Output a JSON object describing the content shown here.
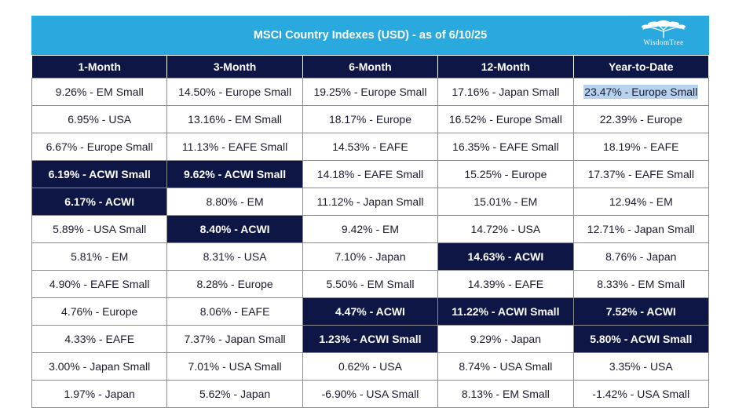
{
  "title": "MSCI Country Indexes (USD) - as of 6/10/25",
  "logo": {
    "icon": "tree-icon",
    "text": "WisdomTree"
  },
  "colors": {
    "title_bar": "#2aa9df",
    "header": "#0e1645",
    "highlight": "#0e1645",
    "selection": "#b7d2ee"
  },
  "columns": [
    "1-Month",
    "3-Month",
    "6-Month",
    "12-Month",
    "Year-to-Date"
  ],
  "rows": [
    [
      "9.26% - EM Small",
      "14.50% - Europe Small",
      "19.25% - Europe Small",
      "17.16% - Japan Small",
      "23.47% - Europe Small"
    ],
    [
      "6.95% - USA",
      "13.16% - EM Small",
      "18.17% - Europe",
      "16.52% - Europe Small",
      "22.39% - Europe"
    ],
    [
      "6.67% - Europe Small",
      "11.13% - EAFE Small",
      "14.53% - EAFE",
      "16.35% - EAFE Small",
      "18.19% - EAFE"
    ],
    [
      "6.19% - ACWI Small",
      "9.62% - ACWI Small",
      "14.18% - EAFE Small",
      "15.25% - Europe",
      "17.37% - EAFE Small"
    ],
    [
      "6.17% - ACWI",
      "8.80% - EM",
      "11.12% - Japan Small",
      "15.01% - EM",
      "12.94% - EM"
    ],
    [
      "5.89% - USA Small",
      "8.40% - ACWI",
      "9.42% - EM",
      "14.72% - USA",
      "12.71% - Japan Small"
    ],
    [
      "5.81% - EM",
      "8.31% - USA",
      "7.10% - Japan",
      "14.63% - ACWI",
      "8.76% - Japan"
    ],
    [
      "4.90% - EAFE Small",
      "8.28% - Europe",
      "5.50% - EM Small",
      "14.39% - EAFE",
      "8.33% - EM Small"
    ],
    [
      "4.76% - Europe",
      "8.06% - EAFE",
      "4.47% - ACWI",
      "11.22% - ACWI Small",
      "7.52% - ACWI"
    ],
    [
      "4.33% - EAFE",
      "7.37% - Japan Small",
      "1.23% - ACWI Small",
      "9.29% - Japan",
      "5.80% - ACWI Small"
    ],
    [
      "3.00% - Japan Small",
      "7.01% - USA Small",
      "0.62% - USA",
      "8.74% - USA Small",
      "3.35% - USA"
    ],
    [
      "1.97% - Japan",
      "5.62% - Japan",
      "-6.90% - USA Small",
      "8.13% - EM Small",
      "-1.42% - USA Small"
    ]
  ],
  "highlighted_cells": [
    [
      3,
      0
    ],
    [
      4,
      0
    ],
    [
      3,
      1
    ],
    [
      5,
      1
    ],
    [
      8,
      2
    ],
    [
      9,
      2
    ],
    [
      6,
      3
    ],
    [
      8,
      3
    ],
    [
      8,
      4
    ],
    [
      9,
      4
    ]
  ],
  "selected_cell": [
    0,
    4
  ]
}
